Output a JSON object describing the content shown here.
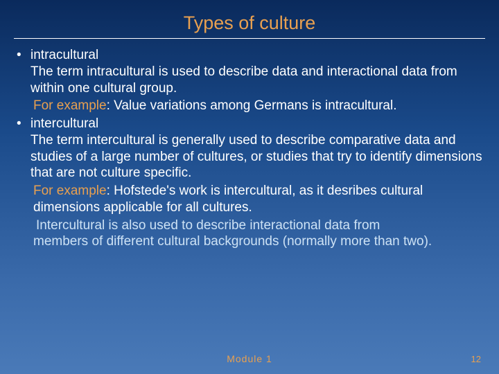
{
  "slide": {
    "title": "Types of culture",
    "title_color": "#e8a050",
    "body_color": "#ffffff",
    "accent_color": "#cde2f5",
    "background_gradient": [
      "#0a2a5c",
      "#1a4a8a",
      "#2a5a9a",
      "#3a6aaa",
      "#4a7ab8"
    ],
    "font_size_title": 27,
    "font_size_body": 19,
    "bullets": [
      {
        "heading": "intracultural",
        "text": "The term intracultural is used to describe data and interactional data from within one cultural group.",
        "example_label": "For example",
        "example_text": ": Value variations among Germans is intracultural."
      },
      {
        "heading": "intercultural",
        "text": "The term intercultural is generally used to describe comparative data and studies of a large number of cultures, or studies that try to identify dimensions that are not culture specific.",
        "example_label": "For example",
        "example_text": ": Hofstede's work is intercultural, as it desribes cultural dimensions applicable for all cultures.",
        "note_line1": "Intercultural is also used to describe interactional data from",
        "note_line2": "members of different cultural backgrounds (normally more than two)."
      }
    ],
    "footer": "Module 1",
    "page_number": "12"
  }
}
